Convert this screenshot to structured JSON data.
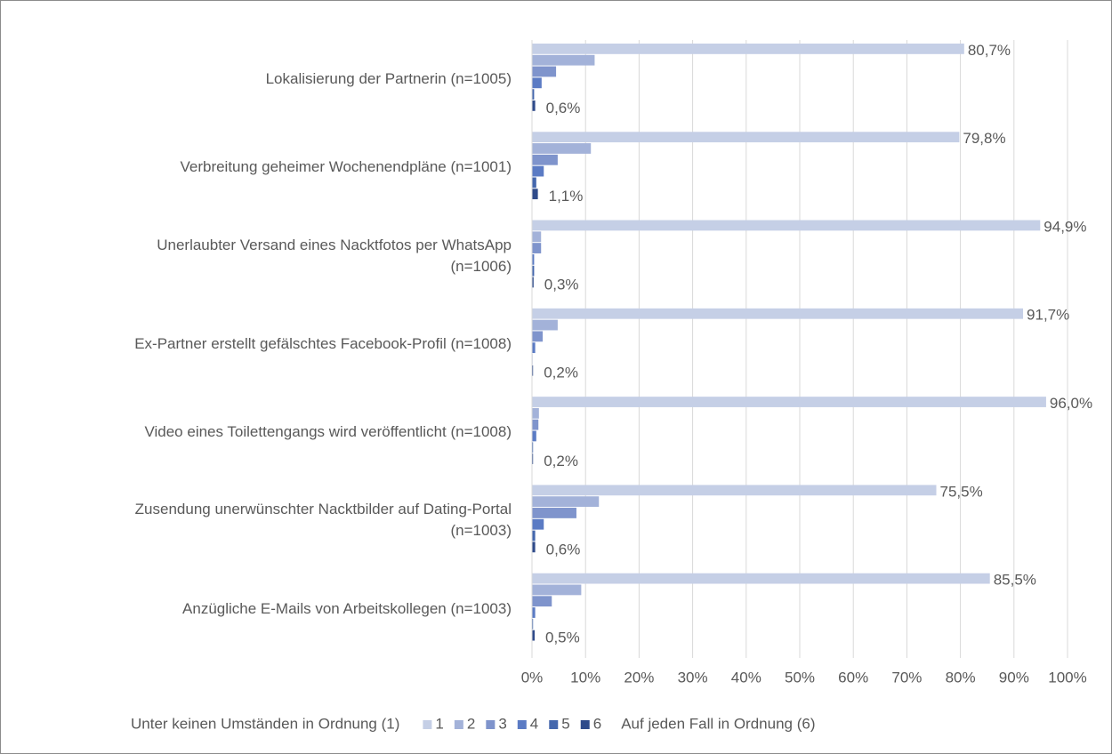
{
  "chart_data": {
    "type": "bar",
    "orientation": "horizontal",
    "categories": [
      "Lokalisierung der Partnerin  (n=1005)",
      "Verbreitung geheimer Wochenendpläne  (n=1001)",
      "Unerlaubter Versand eines Nacktfotos per WhatsApp\n(n=1006)",
      "Ex-Partner erstellt gefälschtes Facebook-Profil (n=1008)",
      "Video eines Toilettengangs wird veröffentlicht  (n=1008)",
      "Zusendung unerwünschter Nacktbilder auf Dating-Portal\n(n=1003)",
      "Anzügliche E-Mails von Arbeitskollegen (n=1003)"
    ],
    "series": [
      {
        "name": "1",
        "color": "#c5cfe6",
        "values": [
          80.7,
          79.8,
          94.9,
          91.7,
          96.0,
          75.5,
          85.5
        ],
        "value_labels": [
          "80,7%",
          "79,8%",
          "94,9%",
          "91,7%",
          "96,0%",
          "75,5%",
          "85,5%"
        ]
      },
      {
        "name": "2",
        "color": "#a3b2d9",
        "values": [
          11.7,
          11.0,
          1.7,
          4.8,
          1.3,
          12.5,
          9.2
        ]
      },
      {
        "name": "3",
        "color": "#7f94cc",
        "values": [
          4.5,
          4.8,
          1.7,
          2.0,
          1.2,
          8.3,
          3.7
        ]
      },
      {
        "name": "4",
        "color": "#5b7bc4",
        "values": [
          1.8,
          2.2,
          0.4,
          0.6,
          0.8,
          2.2,
          0.6
        ]
      },
      {
        "name": "5",
        "color": "#4467ad",
        "values": [
          0.4,
          0.8,
          0.4,
          0.1,
          0.2,
          0.6,
          0.2
        ]
      },
      {
        "name": "6",
        "color": "#2f4b8a",
        "values": [
          0.6,
          1.1,
          0.3,
          0.2,
          0.2,
          0.6,
          0.5
        ],
        "value_labels": [
          "0,6%",
          "1,1%",
          "0,3%",
          "0,2%",
          "0,2%",
          "0,6%",
          "0,5%"
        ]
      }
    ],
    "xlim": [
      0,
      100
    ],
    "xticks": [
      {
        "value": 0,
        "label": "0%"
      },
      {
        "value": 10,
        "label": "10%"
      },
      {
        "value": 20,
        "label": "20%"
      },
      {
        "value": 30,
        "label": "30%"
      },
      {
        "value": 40,
        "label": "40%"
      },
      {
        "value": 50,
        "label": "50%"
      },
      {
        "value": 60,
        "label": "60%"
      },
      {
        "value": 70,
        "label": "70%"
      },
      {
        "value": 80,
        "label": "80%"
      },
      {
        "value": 90,
        "label": "90%"
      },
      {
        "value": 100,
        "label": "100%"
      }
    ],
    "grid": true,
    "legend": "bottom",
    "legend_left_label": "Unter keinen Umständen in Ordnung (1)",
    "legend_right_label": "Auf jeden Fall in Ordnung (6)"
  }
}
